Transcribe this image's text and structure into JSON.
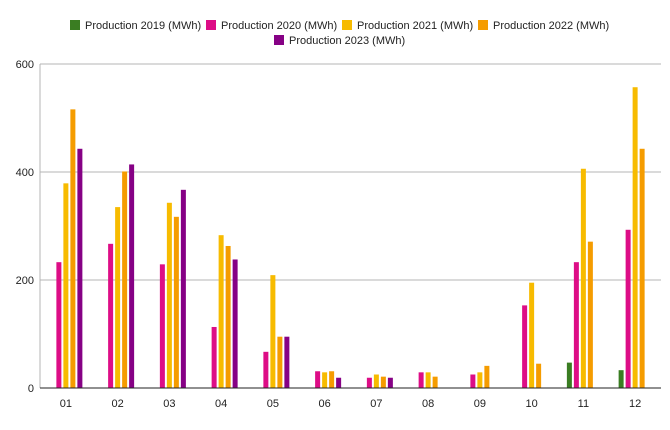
{
  "chart_data": {
    "type": "bar",
    "title": "",
    "xlabel": "",
    "ylabel": "",
    "categories": [
      "01",
      "02",
      "03",
      "04",
      "05",
      "06",
      "07",
      "08",
      "09",
      "10",
      "11",
      "12"
    ],
    "ylim": [
      0,
      600
    ],
    "yticks": [
      0,
      200,
      400,
      600
    ],
    "grid": true,
    "legend_position": "top",
    "series": [
      {
        "name": "Production 2019 (MWh)",
        "color": "#3a7d22",
        "values": [
          null,
          null,
          null,
          null,
          null,
          null,
          null,
          null,
          null,
          null,
          47,
          33
        ]
      },
      {
        "name": "Production 2020 (MWh)",
        "color": "#dd0d86",
        "values": [
          233,
          267,
          229,
          113,
          67,
          31,
          19,
          29,
          25,
          153,
          233,
          293
        ]
      },
      {
        "name": "Production 2021 (MWh)",
        "color": "#f7bb00",
        "values": [
          379,
          335,
          343,
          283,
          209,
          29,
          25,
          29,
          29,
          195,
          406,
          557
        ]
      },
      {
        "name": "Production 2022 (MWh)",
        "color": "#f59c00",
        "values": [
          516,
          401,
          317,
          263,
          95,
          31,
          21,
          21,
          41,
          45,
          271,
          443
        ]
      },
      {
        "name": "Production 2023 (MWh)",
        "color": "#860185",
        "values": [
          443,
          414,
          367,
          238,
          95,
          19,
          19,
          null,
          null,
          null,
          null,
          null
        ]
      }
    ]
  }
}
